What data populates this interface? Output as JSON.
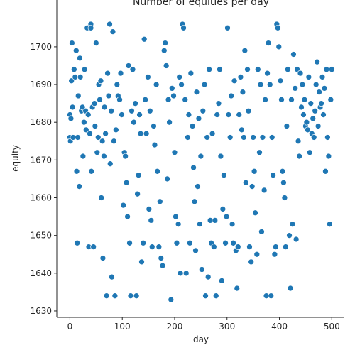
{
  "chart_data": {
    "type": "scatter",
    "title": "Number of equities per day",
    "xlabel": "day",
    "ylabel": "equity",
    "color": "#1f77b4",
    "x": [
      0,
      0,
      1,
      2,
      3,
      4,
      5,
      6,
      8,
      10,
      12,
      13,
      14,
      15,
      16,
      18,
      19,
      20,
      22,
      24,
      25,
      27,
      28,
      30,
      31,
      33,
      35,
      36,
      38,
      40,
      40,
      41,
      43,
      45,
      47,
      48,
      50,
      52,
      54,
      55,
      57,
      59,
      60,
      62,
      63,
      65,
      66,
      68,
      70,
      72,
      74,
      76,
      77,
      79,
      80,
      82,
      84,
      86,
      88,
      90,
      92,
      95,
      97,
      99,
      102,
      104,
      106,
      108,
      110,
      112,
      114,
      116,
      118,
      120,
      122,
      125,
      127,
      129,
      131,
      133,
      135,
      137,
      140,
      142,
      144,
      146,
      149,
      151,
      153,
      155,
      157,
      160,
      162,
      165,
      167,
      170,
      172,
      174,
      177,
      180,
      182,
      184,
      186,
      188,
      190,
      193,
      195,
      198,
      200,
      202,
      204,
      207,
      209,
      211,
      213,
      215,
      217,
      220,
      222,
      225,
      227,
      229,
      231,
      234,
      236,
      238,
      240,
      242,
      244,
      246,
      248,
      250,
      252,
      254,
      257,
      259,
      262,
      264,
      266,
      268,
      270,
      272,
      275,
      277,
      279,
      281,
      284,
      286,
      288,
      290,
      292,
      294,
      297,
      299,
      301,
      303,
      306,
      308,
      310,
      312,
      314,
      317,
      319,
      321,
      323,
      326,
      328,
      330,
      332,
      334,
      336,
      339,
      341,
      343,
      346,
      348,
      350,
      352,
      354,
      357,
      359,
      362,
      364,
      366,
      368,
      371,
      373,
      375,
      377,
      379,
      382,
      384,
      386,
      388,
      391,
      393,
      395,
      397,
      399,
      402,
      404,
      406,
      408,
      410,
      412,
      414,
      416,
      419,
      421,
      423,
      425,
      427,
      430,
      432,
      434,
      436,
      438,
      440,
      442,
      444,
      446,
      448,
      450,
      452,
      454,
      456,
      458,
      460,
      462,
      464,
      466,
      468,
      470,
      472,
      474,
      476,
      478,
      480,
      482,
      484,
      486,
      488,
      490,
      492,
      494,
      496,
      498,
      500
    ],
    "y": [
      1682,
      1676,
      1675,
      1681,
      1691,
      1701,
      1684,
      1676,
      1694,
      1692,
      1699,
      1667,
      1648,
      1676,
      1687,
      1663,
      1697,
      1692,
      1683,
      1684,
      1671,
      1680,
      1694,
      1683,
      1678,
      1705,
      1682,
      1647,
      1677,
      1706,
      1705,
      1667,
      1684,
      1647,
      1685,
      1679,
      1701,
      1672,
      1676,
      1690,
      1686,
      1691,
      1660,
      1675,
      1644,
      1671,
      1684,
      1677,
      1634,
      1693,
      1687,
      1706,
      1669,
      1683,
      1639,
      1704,
      1675,
      1634,
      1678,
      1690,
      1687,
      1686,
      1693,
      1682,
      1658,
      1672,
      1671,
      1664,
      1655,
      1695,
      1648,
      1634,
      1683,
      1694,
      1680,
      1685,
      1634,
      1661,
      1666,
      1682,
      1677,
      1643,
      1648,
      1702,
      1686,
      1677,
      1692,
      1657,
      1683,
      1654,
      1647,
      1679,
      1674,
      1690,
      1667,
      1647,
      1659,
      1644,
      1642,
      1699,
      1701,
      1695,
      1665,
      1686,
      1680,
      1633,
      1689,
      1687,
      1672,
      1655,
      1648,
      1653,
      1692,
      1640,
      1690,
      1706,
      1705,
      1686,
      1640,
      1676,
      1682,
      1648,
      1693,
      1679,
      1668,
      1659,
      1646,
      1688,
      1663,
      1681,
      1653,
      1671,
      1641,
      1683,
      1690,
      1634,
      1676,
      1639,
      1694,
      1654,
      1648,
      1677,
      1647,
      1654,
      1634,
      1682,
      1685,
      1694,
      1671,
      1638,
      1657,
      1666,
      1648,
      1655,
      1705,
      1682,
      1676,
      1687,
      1653,
      1648,
      1691,
      1646,
      1636,
      1647,
      1682,
      1692,
      1678,
      1688,
      1676,
      1699,
      1664,
      1694,
      1683,
      1647,
      1643,
      1663,
      1676,
      1667,
      1656,
      1645,
      1694,
      1672,
      1690,
      1651,
      1676,
      1662,
      1686,
      1634,
      1693,
      1701,
      1690,
      1634,
      1676,
      1666,
      1645,
      1647,
      1706,
      1705,
      1700,
      1691,
      1686,
      1667,
      1664,
      1660,
      1647,
      1679,
      1694,
      1650,
      1636,
      1686,
      1653,
      1698,
      1689,
      1649,
      1694,
      1675,
      1671,
      1693,
      1684,
      1690,
      1682,
      1686,
      1679,
      1680,
      1678,
      1692,
      1672,
      1685,
      1677,
      1681,
      1676,
      1683,
      1690,
      1696,
      1679,
      1688,
      1684,
      1685,
      1692,
      1682,
      1689,
      1667,
      1694,
      1676,
      1671,
      1653,
      1686,
      1694
    ],
    "xlim": [
      -25,
      524
    ],
    "ylim": [
      1628.3,
      1712.4
    ],
    "xticks": [
      0,
      100,
      200,
      300,
      400,
      500
    ],
    "yticks": [
      1630,
      1640,
      1650,
      1660,
      1670,
      1680,
      1690,
      1700
    ]
  }
}
